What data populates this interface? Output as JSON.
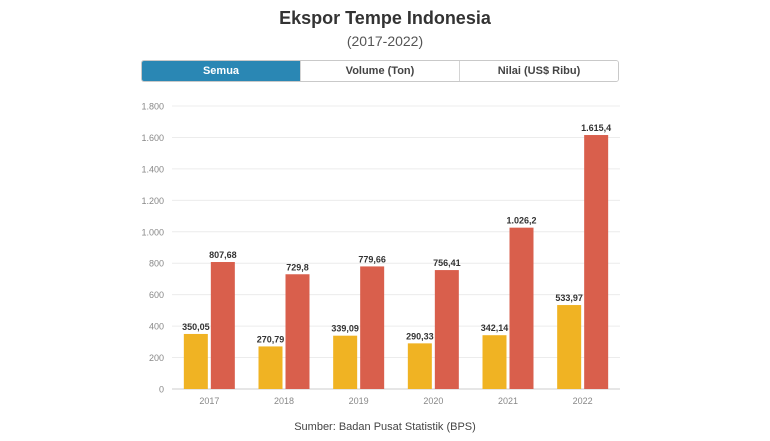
{
  "header": {
    "title": "Ekspor Tempe Indonesia",
    "subtitle": "(2017-2022)"
  },
  "tabs": [
    {
      "label": "Semua",
      "active": true
    },
    {
      "label": "Volume (Ton)",
      "active": false
    },
    {
      "label": "Nilai (US$ Ribu)",
      "active": false
    }
  ],
  "source": "Sumber: Badan Pusat Statistik (BPS)",
  "colors": {
    "active_tab": "#2a87b4",
    "volume": "#f0b323",
    "nilai": "#d95f4c"
  },
  "chart_data": {
    "type": "bar",
    "categories": [
      "2017",
      "2018",
      "2019",
      "2020",
      "2021",
      "2022"
    ],
    "series": [
      {
        "values": [
          350.05,
          270.79,
          339.09,
          290.33,
          342.14,
          533.97
        ],
        "labels": [
          "350,05",
          "270,79",
          "339,09",
          "290,33",
          "342,14",
          "533,97"
        ],
        "color": "#f0b323"
      },
      {
        "values": [
          807.68,
          729.8,
          779.66,
          756.41,
          1026.2,
          1615.4
        ],
        "labels": [
          "807,68",
          "729,8",
          "779,66",
          "756,41",
          "1.026,2",
          "1.615,4"
        ],
        "color": "#d95f4c"
      }
    ],
    "ylim": [
      0,
      1800
    ],
    "yticks": [
      0,
      200,
      400,
      600,
      800,
      1000,
      1200,
      1400,
      1600,
      1800
    ],
    "ytick_labels": [
      "0",
      "200",
      "400",
      "600",
      "800",
      "1.000",
      "1.200",
      "1.400",
      "1.600",
      "1.800"
    ],
    "grid": true,
    "legend": "none"
  }
}
